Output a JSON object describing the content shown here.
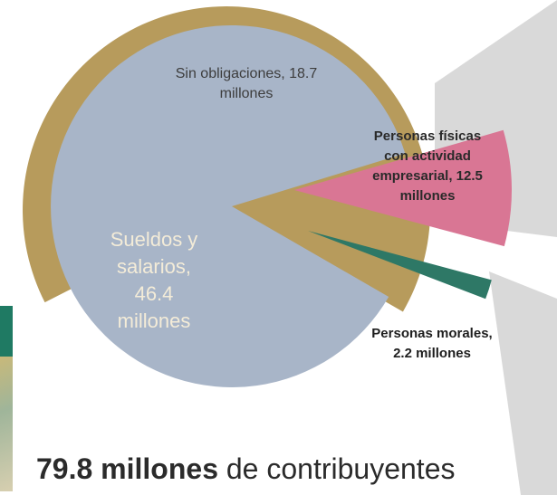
{
  "chart_data": {
    "type": "pie",
    "title": "",
    "slices": [
      {
        "label": "Sueldos y salarios, 46.4 millones",
        "lines": [
          "Sueldos y",
          "salarios,",
          "46.4",
          "millones"
        ],
        "value": 46.4,
        "color": "#b79b5c",
        "text_color": "#f4ecd8",
        "bold": false
      },
      {
        "label": "Sin obligaciones, 18.7 millones",
        "lines": [
          "Sin obligaciones, 18.7",
          "millones"
        ],
        "value": 18.7,
        "color": "#a8b5c8",
        "text_color": "#3d3d3d",
        "bold": false
      },
      {
        "label": "Personas físicas con actividad empresarial, 12.5 millones",
        "lines": [
          "Personas físicas",
          "con actividad",
          "empresarial, 12.5",
          "millones"
        ],
        "value": 12.5,
        "color": "#d97694",
        "text_color": "#2a2a2a",
        "bold": true
      },
      {
        "label": "Personas morales, 2.2 millones",
        "lines": [
          "Personas morales,",
          "2.2 millones"
        ],
        "value": 2.2,
        "color": "#2e7866",
        "text_color": "#1e1e1e",
        "bold": true
      }
    ],
    "total_label": {
      "value": "79.8 millones",
      "text": " de contribuyentes"
    }
  }
}
